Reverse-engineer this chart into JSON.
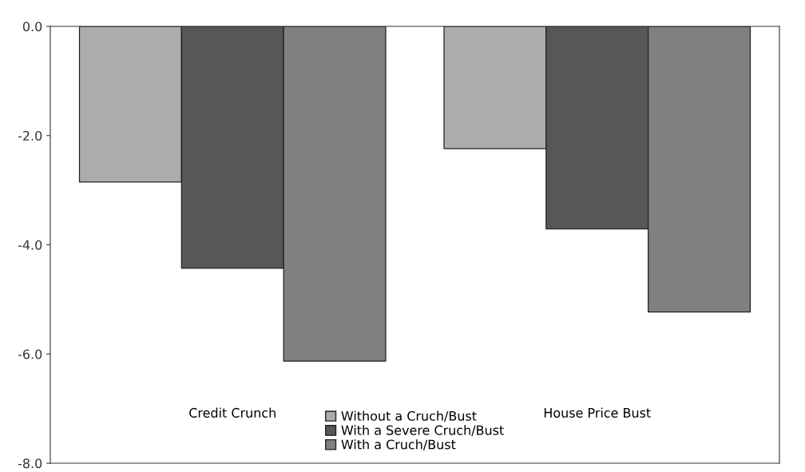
{
  "chart_data": {
    "type": "bar",
    "categories": [
      "Credit Crunch",
      "House Price Bust"
    ],
    "series": [
      {
        "name": "Without a Cruch/Bust",
        "color": "#acacac",
        "values": [
          -2.85,
          -2.24
        ]
      },
      {
        "name": "With a Severe Cruch/Bust",
        "color": "#575757",
        "values": [
          -4.43,
          -3.71
        ]
      },
      {
        "name": "With a Cruch/Bust",
        "color": "#808080",
        "values": [
          -6.13,
          -5.23
        ]
      }
    ],
    "ylim": [
      -8.0,
      0.0
    ],
    "yticks": [
      {
        "value": -8,
        "label": "-8.0"
      },
      {
        "value": -6,
        "label": "-6.0"
      },
      {
        "value": -4,
        "label": "-4.0"
      },
      {
        "value": -2,
        "label": "-2.0"
      },
      {
        "value": 0,
        "label": "0.0"
      }
    ],
    "legend": "bottom",
    "grid": false
  }
}
